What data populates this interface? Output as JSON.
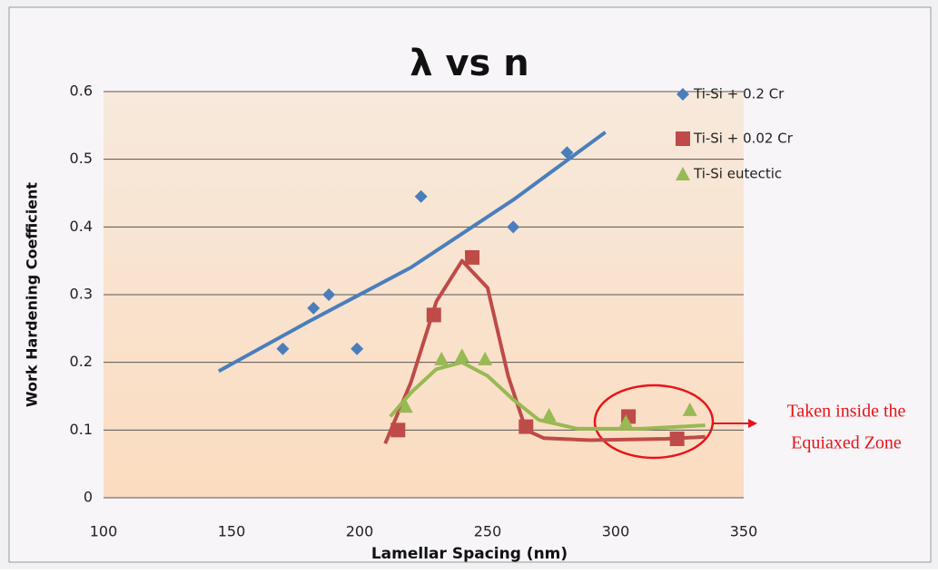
{
  "chart_data": {
    "type": "scatter",
    "title": "λ vs n",
    "x_label": "Lamellar Spacing (nm)",
    "y_label": "Work Hardening Coefficient",
    "xlim": [
      100,
      350
    ],
    "xticks": [
      100,
      150,
      200,
      250,
      300,
      350
    ],
    "ylim": [
      0,
      0.6
    ],
    "yticks": [
      0,
      0.1,
      0.2,
      0.3,
      0.4,
      0.5,
      0.6
    ],
    "grid": true,
    "legend": "right",
    "series": [
      {
        "name": "Ti-Si + 0.2 Cr",
        "color": "#4a7ebb",
        "marker": "diamond",
        "x": [
          170,
          182,
          188,
          199,
          224,
          260,
          281
        ],
        "y": [
          0.22,
          0.28,
          0.3,
          0.22,
          0.445,
          0.4,
          0.51
        ],
        "trendline": {
          "x": [
            145,
            180,
            220,
            260,
            296
          ],
          "y": [
            0.187,
            0.26,
            0.34,
            0.44,
            0.54
          ]
        }
      },
      {
        "name": "Ti-Si + 0.02 Cr",
        "color": "#be4b48",
        "marker": "square",
        "x": [
          215,
          229,
          244,
          265,
          305,
          324
        ],
        "y": [
          0.1,
          0.27,
          0.355,
          0.105,
          0.12,
          0.087
        ],
        "trendline": {
          "x": [
            210,
            220,
            230,
            240,
            250,
            258,
            265,
            272,
            290,
            320,
            335
          ],
          "y": [
            0.08,
            0.17,
            0.29,
            0.35,
            0.31,
            0.18,
            0.1,
            0.088,
            0.085,
            0.087,
            0.09
          ]
        }
      },
      {
        "name": "Ti-Si eutectic",
        "color": "#98b954",
        "marker": "triangle",
        "x": [
          218,
          232,
          240,
          249,
          274,
          304,
          329
        ],
        "y": [
          0.135,
          0.205,
          0.21,
          0.205,
          0.122,
          0.112,
          0.13
        ],
        "trendline": {
          "x": [
            212,
            220,
            230,
            240,
            250,
            260,
            270,
            285,
            310,
            335
          ],
          "y": [
            0.12,
            0.155,
            0.19,
            0.2,
            0.18,
            0.145,
            0.115,
            0.102,
            0.102,
            0.107
          ]
        }
      }
    ],
    "annotation": {
      "lines": [
        "Taken inside the",
        "Equiaxed Zone"
      ],
      "color": "#e8141a"
    }
  }
}
